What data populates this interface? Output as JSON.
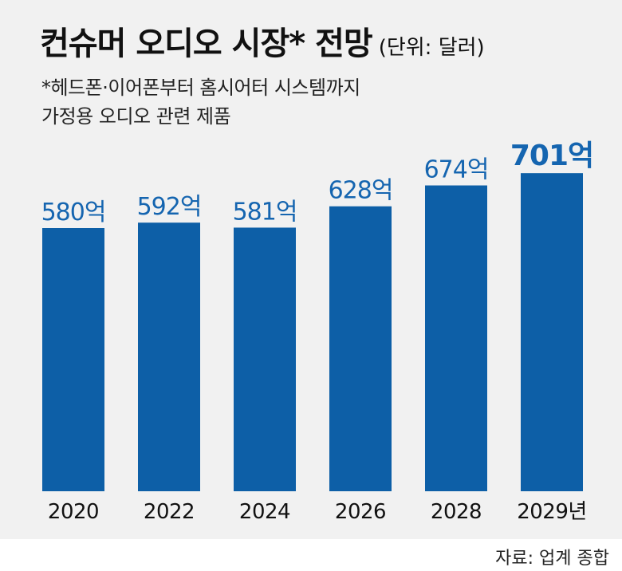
{
  "header": {
    "title": "컨슈머 오디오 시장* 전망",
    "unit": "(단위: 달러)",
    "footnote": "*헤드폰·이어폰부터 홈시어터 시스템까지\n 가정용 오디오 관련 제품"
  },
  "source": "자료: 업계 종합",
  "colors": {
    "bar": "#0d5fa7",
    "label": "#1565b0",
    "background": "#f1f1f1"
  },
  "chart_data": {
    "type": "bar",
    "title": "컨슈머 오디오 시장* 전망",
    "subtitle": "(단위: 달러)",
    "categories": [
      "2020",
      "2022",
      "2024",
      "2026",
      "2028",
      "2029년"
    ],
    "values": [
      580,
      592,
      581,
      628,
      674,
      701
    ],
    "value_labels": [
      "580억",
      "592억",
      "581억",
      "628억",
      "674억",
      "701억"
    ],
    "value_unit": "억 달러",
    "grid": false,
    "legend": "none"
  }
}
